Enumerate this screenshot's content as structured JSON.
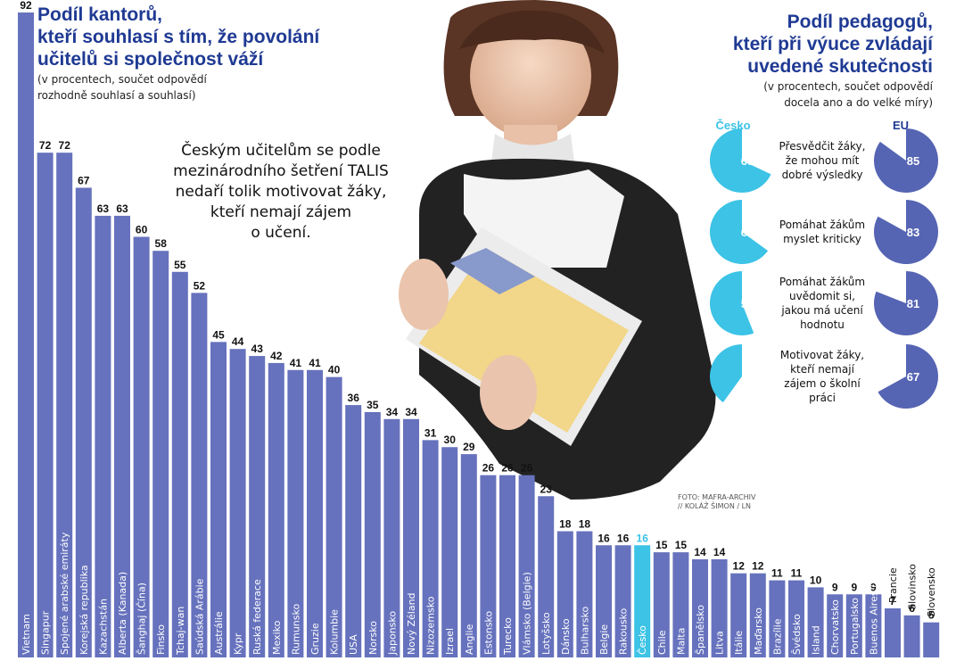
{
  "left_title": {
    "lines": [
      "Podíl kantorů,",
      "kteří souhlasí s tím, že povolání",
      "učitelů si společnost váží"
    ],
    "sub": [
      "(v procentech, součet odpovědí",
      "rozhodně souhlasí a souhlasí)"
    ]
  },
  "right_title": {
    "lines": [
      "Podíl pedagogů,",
      "kteří při výuce zvládají",
      "uvedené skutečnosti"
    ],
    "sub": [
      "(v procentech, součet odpovědí",
      "docela ano a do velké míry)"
    ]
  },
  "lead_text": [
    "Českým učitelům se podle",
    "mezinárodního šetření TALIS",
    "nedaří tolik motivovat žáky,",
    "kteří nemají zájem",
    "o učení."
  ],
  "photo_credit": [
    "FOTO: MAFRA-ARCHIV",
    "// KOLÁŽ ŠIMON / LN"
  ],
  "colors": {
    "bar": "#6672bd",
    "highlight": "#3cc3e6",
    "title": "#1f3a93",
    "czech_pie": "#3cc3e6",
    "eu_pie": "#5564b3"
  },
  "chart_data": [
    {
      "type": "bar",
      "categories": [
        "Vietnam",
        "Singapur",
        "Spojené arabské emiráty",
        "Korejská republika",
        "Kazachstán",
        "Alberta (Kanada)",
        "Šanghaj (Čína)",
        "Finsko",
        "Tchaj-wan",
        "Saúdská Arábie",
        "Austrálie",
        "Kypr",
        "Ruská federace",
        "Mexiko",
        "Rumunsko",
        "Gruzie",
        "Kolumbie",
        "USA",
        "Norsko",
        "Japonsko",
        "Nový Zéland",
        "Nizozemsko",
        "Izrael",
        "Anglie",
        "Estonsko",
        "Turecko",
        "Vlámsko (Belgie)",
        "Lotyšsko",
        "Dánsko",
        "Bulharsko",
        "Belgie",
        "Rakousko",
        "Česko",
        "Chile",
        "Malta",
        "Španělsko",
        "Litva",
        "Itálie",
        "Maďarsko",
        "Brazílie",
        "Švédsko",
        "Island",
        "Chorvatsko",
        "Portugalsko",
        "Buenos Aires (Argentina)",
        "Francie",
        "Slovinsko",
        "Slovensko"
      ],
      "values": [
        92,
        72,
        72,
        67,
        63,
        63,
        60,
        58,
        55,
        52,
        45,
        44,
        43,
        42,
        41,
        41,
        40,
        36,
        35,
        34,
        34,
        31,
        30,
        29,
        26,
        26,
        26,
        23,
        18,
        18,
        16,
        16,
        16,
        15,
        15,
        14,
        14,
        12,
        12,
        11,
        11,
        10,
        9,
        9,
        9,
        7,
        6,
        5
      ],
      "highlight_category": "Česko",
      "title": "Podíl kantorů, kteří souhlasí s tím, že povolání učitelů si společnost váží",
      "ylim": [
        0,
        92
      ]
    },
    {
      "type": "pie",
      "series_labels": [
        "Česko",
        "EU"
      ],
      "items": [
        {
          "label": [
            "Přesvědčit žáky,",
            "že mohou mít",
            "dobré výsledky"
          ],
          "cesko": 68,
          "eu": 85
        },
        {
          "label": [
            "Pomáhat žákům",
            "myslet kriticky"
          ],
          "cesko": 65,
          "eu": 83
        },
        {
          "label": [
            "Pomáhat žákům",
            "uvědomit si,",
            "jakou má učení",
            "hodnotu"
          ],
          "cesko": 56,
          "eu": 81
        },
        {
          "label": [
            "Motivovat žáky,",
            "kteří nemají",
            "zájem o školní",
            "práci"
          ],
          "cesko": 40,
          "eu": 67
        }
      ]
    }
  ]
}
